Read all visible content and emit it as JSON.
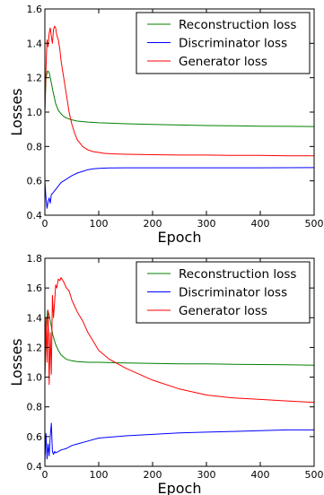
{
  "chart_data": [
    {
      "type": "line",
      "xlabel": "Epoch",
      "ylabel": "Losses",
      "xlim": [
        0,
        500
      ],
      "ylim": [
        0.4,
        1.6
      ],
      "xticks": [
        0,
        100,
        200,
        300,
        400,
        500
      ],
      "yticks": [
        0.4,
        0.6,
        0.8,
        1.0,
        1.2,
        1.4,
        1.6
      ],
      "xtick_labels": [
        "0",
        "100",
        "200",
        "300",
        "400",
        "500"
      ],
      "ytick_labels": [
        "0.4",
        "0.6",
        "0.8",
        "1.0",
        "1.2",
        "1.4",
        "1.6"
      ],
      "grid": false,
      "legend_position": "upper-right",
      "series": [
        {
          "name": "Reconstruction loss",
          "color": "#008000",
          "x": [
            0,
            2,
            5,
            8,
            10,
            12,
            15,
            18,
            20,
            25,
            30,
            35,
            40,
            50,
            60,
            80,
            100,
            150,
            200,
            250,
            300,
            350,
            400,
            450,
            500
          ],
          "y": [
            1.0,
            1.2,
            1.24,
            1.23,
            1.2,
            1.17,
            1.12,
            1.08,
            1.05,
            1.01,
            0.99,
            0.975,
            0.965,
            0.955,
            0.948,
            0.942,
            0.938,
            0.932,
            0.928,
            0.925,
            0.922,
            0.92,
            0.918,
            0.917,
            0.916
          ]
        },
        {
          "name": "Discriminator loss",
          "color": "#0000ff",
          "x": [
            0,
            2,
            4,
            6,
            8,
            10,
            12,
            15,
            20,
            25,
            30,
            40,
            50,
            60,
            70,
            80,
            90,
            100,
            120,
            150,
            200,
            300,
            400,
            500
          ],
          "y": [
            0.6,
            0.5,
            0.44,
            0.48,
            0.5,
            0.47,
            0.52,
            0.53,
            0.55,
            0.57,
            0.59,
            0.61,
            0.63,
            0.645,
            0.655,
            0.665,
            0.67,
            0.673,
            0.675,
            0.676,
            0.676,
            0.676,
            0.676,
            0.677
          ]
        },
        {
          "name": "Generator loss",
          "color": "#ff0000",
          "x": [
            0,
            2,
            4,
            6,
            8,
            10,
            12,
            14,
            16,
            18,
            20,
            22,
            25,
            28,
            30,
            35,
            40,
            45,
            50,
            55,
            60,
            70,
            80,
            90,
            100,
            110,
            120,
            150,
            200,
            250,
            300,
            350,
            400,
            450,
            500
          ],
          "y": [
            1.0,
            1.25,
            1.42,
            1.38,
            1.46,
            1.49,
            1.44,
            1.4,
            1.48,
            1.5,
            1.49,
            1.45,
            1.42,
            1.36,
            1.3,
            1.2,
            1.1,
            1.0,
            0.93,
            0.88,
            0.84,
            0.8,
            0.78,
            0.77,
            0.765,
            0.76,
            0.758,
            0.755,
            0.752,
            0.75,
            0.75,
            0.748,
            0.748,
            0.746,
            0.746
          ]
        }
      ]
    },
    {
      "type": "line",
      "xlabel": "Epoch",
      "ylabel": "Losses",
      "xlim": [
        0,
        500
      ],
      "ylim": [
        0.4,
        1.8
      ],
      "xticks": [
        0,
        100,
        200,
        300,
        400,
        500
      ],
      "yticks": [
        0.4,
        0.6,
        0.8,
        1.0,
        1.2,
        1.4,
        1.6,
        1.8
      ],
      "xtick_labels": [
        "0",
        "100",
        "200",
        "300",
        "400",
        "500"
      ],
      "ytick_labels": [
        "0.4",
        "0.6",
        "0.8",
        "1.0",
        "1.2",
        "1.4",
        "1.6",
        "1.8"
      ],
      "grid": false,
      "legend_position": "upper-right",
      "series": [
        {
          "name": "Reconstruction loss",
          "color": "#008000",
          "x": [
            0,
            2,
            5,
            8,
            10,
            12,
            15,
            20,
            25,
            30,
            40,
            50,
            60,
            80,
            100,
            150,
            200,
            250,
            300,
            350,
            400,
            450,
            500
          ],
          "y": [
            1.0,
            1.3,
            1.45,
            1.42,
            1.38,
            1.34,
            1.28,
            1.22,
            1.18,
            1.15,
            1.12,
            1.11,
            1.105,
            1.1,
            1.1,
            1.095,
            1.093,
            1.09,
            1.09,
            1.087,
            1.085,
            1.083,
            1.08
          ]
        },
        {
          "name": "Discriminator loss",
          "color": "#0000ff",
          "x": [
            0,
            2,
            4,
            6,
            8,
            10,
            12,
            14,
            16,
            18,
            20,
            25,
            30,
            40,
            50,
            60,
            80,
            100,
            150,
            200,
            250,
            300,
            350,
            400,
            450,
            500
          ],
          "y": [
            0.43,
            0.62,
            0.45,
            0.55,
            0.47,
            0.6,
            0.69,
            0.5,
            0.48,
            0.5,
            0.49,
            0.5,
            0.51,
            0.52,
            0.54,
            0.55,
            0.57,
            0.59,
            0.605,
            0.615,
            0.625,
            0.63,
            0.635,
            0.64,
            0.645,
            0.645
          ]
        },
        {
          "name": "Generator loss",
          "color": "#ff0000",
          "x": [
            0,
            2,
            4,
            6,
            8,
            10,
            12,
            14,
            16,
            18,
            20,
            22,
            25,
            28,
            30,
            35,
            40,
            45,
            50,
            55,
            60,
            70,
            80,
            90,
            100,
            120,
            150,
            200,
            250,
            300,
            350,
            400,
            450,
            500
          ],
          "y": [
            1.0,
            1.4,
            1.1,
            1.45,
            0.95,
            1.3,
            1.02,
            1.55,
            1.4,
            1.5,
            1.62,
            1.6,
            1.66,
            1.65,
            1.67,
            1.64,
            1.6,
            1.58,
            1.52,
            1.48,
            1.44,
            1.38,
            1.3,
            1.24,
            1.18,
            1.12,
            1.06,
            0.98,
            0.92,
            0.88,
            0.86,
            0.85,
            0.84,
            0.83
          ]
        }
      ]
    }
  ]
}
